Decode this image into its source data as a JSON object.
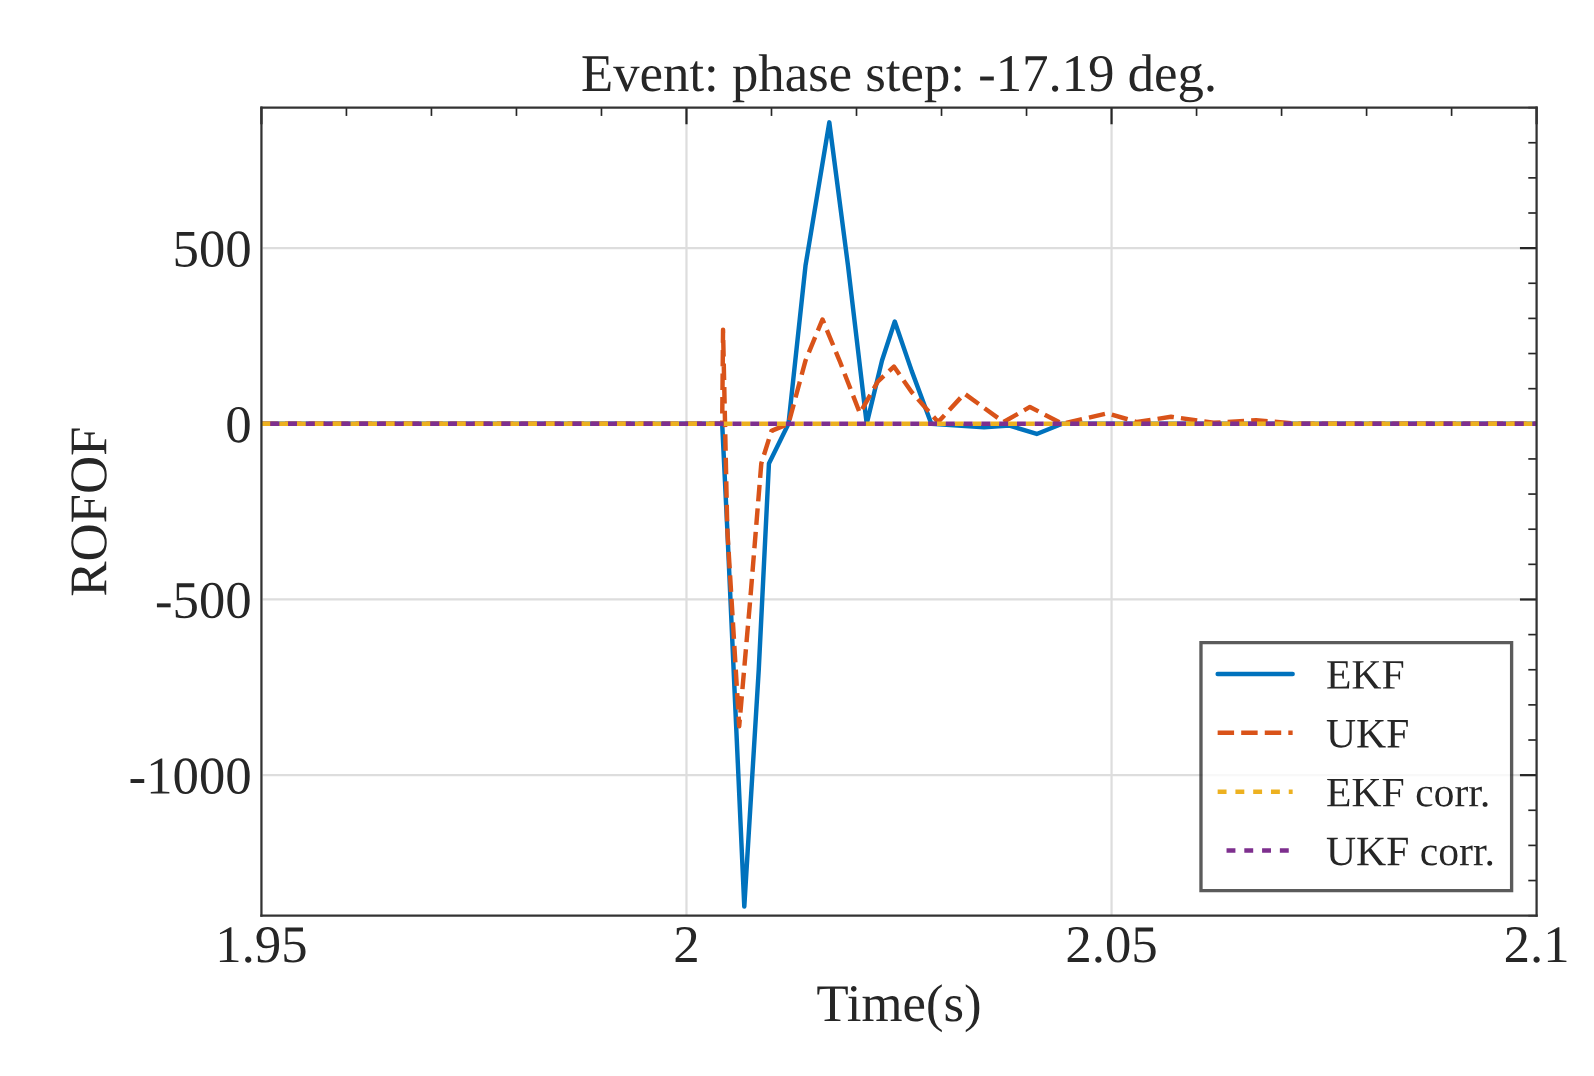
{
  "chart_data": {
    "type": "line",
    "title": "Event: phase step: -17.19 deg.",
    "xlabel": "Time(s)",
    "ylabel": "ROFOF",
    "xlim": [
      1.95,
      2.1
    ],
    "xticks": [
      1.95,
      2,
      2.05,
      2.1
    ],
    "ylim": [
      -1400,
      900
    ],
    "yticks": [
      -1000,
      -500,
      0,
      500
    ],
    "grid": true,
    "legend": "bottom right",
    "series": [
      {
        "name": "EKF",
        "color": "#0072bd",
        "line_style": "solid",
        "x": [
          1.95,
          2.0042,
          2.0048,
          2.0068,
          2.0085,
          2.0097,
          2.012,
          2.014,
          2.0168,
          2.019,
          2.0212,
          2.023,
          2.0245,
          2.0265,
          2.0288,
          2.035,
          2.038,
          2.0412,
          2.0442,
          2.1
        ],
        "values": [
          0,
          0,
          -300,
          -1374,
          -700,
          -113,
          0,
          450,
          858,
          450,
          0,
          180,
          291,
          150,
          0,
          -10,
          -5,
          -29,
          0,
          0
        ]
      },
      {
        "name": "UKF",
        "color": "#d95319",
        "line_style": "dashed",
        "x": [
          1.95,
          2.0042,
          2.0043,
          2.0048,
          2.0062,
          2.0075,
          2.0088,
          2.01,
          2.012,
          2.014,
          2.016,
          2.018,
          2.0204,
          2.0225,
          2.0244,
          2.0265,
          2.0296,
          2.0327,
          2.0373,
          2.0404,
          2.0442,
          2.0495,
          2.053,
          2.057,
          2.062,
          2.067,
          2.072,
          2.1
        ],
        "values": [
          0,
          0,
          268,
          -300,
          -861,
          -500,
          -113,
          -20,
          0,
          180,
          297,
          180,
          30,
          120,
          163,
          90,
          5,
          86,
          5,
          48,
          0,
          30,
          5,
          20,
          3,
          10,
          0,
          0
        ]
      },
      {
        "name": "EKF corr.",
        "color": "#edb120",
        "line_style": "dotted",
        "x": [
          1.95,
          2.1
        ],
        "values": [
          0,
          0
        ]
      },
      {
        "name": "UKF corr.",
        "color": "#7e2f8e",
        "line_style": "dotted",
        "x": [
          1.95,
          2.1
        ],
        "values": [
          0,
          0
        ]
      }
    ]
  }
}
